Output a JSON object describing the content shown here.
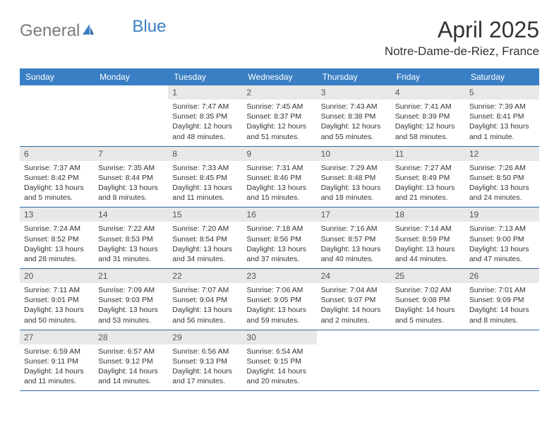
{
  "logo": {
    "text_part1": "General",
    "text_part2": "Blue",
    "color_gray": "#7a7a7a",
    "color_blue": "#3a7fc4"
  },
  "title": "April 2025",
  "location": "Notre-Dame-de-Riez, France",
  "header_bg": "#3a7fc4",
  "header_fg": "#ffffff",
  "daynum_bg": "#e8e8e8",
  "row_border": "#2e68a3",
  "weekdays": [
    "Sunday",
    "Monday",
    "Tuesday",
    "Wednesday",
    "Thursday",
    "Friday",
    "Saturday"
  ],
  "weeks": [
    {
      "days": [
        null,
        null,
        {
          "n": "1",
          "sr": "Sunrise: 7:47 AM",
          "ss": "Sunset: 8:35 PM",
          "dl1": "Daylight: 12 hours",
          "dl2": "and 48 minutes."
        },
        {
          "n": "2",
          "sr": "Sunrise: 7:45 AM",
          "ss": "Sunset: 8:37 PM",
          "dl1": "Daylight: 12 hours",
          "dl2": "and 51 minutes."
        },
        {
          "n": "3",
          "sr": "Sunrise: 7:43 AM",
          "ss": "Sunset: 8:38 PM",
          "dl1": "Daylight: 12 hours",
          "dl2": "and 55 minutes."
        },
        {
          "n": "4",
          "sr": "Sunrise: 7:41 AM",
          "ss": "Sunset: 8:39 PM",
          "dl1": "Daylight: 12 hours",
          "dl2": "and 58 minutes."
        },
        {
          "n": "5",
          "sr": "Sunrise: 7:39 AM",
          "ss": "Sunset: 8:41 PM",
          "dl1": "Daylight: 13 hours",
          "dl2": "and 1 minute."
        }
      ]
    },
    {
      "days": [
        {
          "n": "6",
          "sr": "Sunrise: 7:37 AM",
          "ss": "Sunset: 8:42 PM",
          "dl1": "Daylight: 13 hours",
          "dl2": "and 5 minutes."
        },
        {
          "n": "7",
          "sr": "Sunrise: 7:35 AM",
          "ss": "Sunset: 8:44 PM",
          "dl1": "Daylight: 13 hours",
          "dl2": "and 8 minutes."
        },
        {
          "n": "8",
          "sr": "Sunrise: 7:33 AM",
          "ss": "Sunset: 8:45 PM",
          "dl1": "Daylight: 13 hours",
          "dl2": "and 11 minutes."
        },
        {
          "n": "9",
          "sr": "Sunrise: 7:31 AM",
          "ss": "Sunset: 8:46 PM",
          "dl1": "Daylight: 13 hours",
          "dl2": "and 15 minutes."
        },
        {
          "n": "10",
          "sr": "Sunrise: 7:29 AM",
          "ss": "Sunset: 8:48 PM",
          "dl1": "Daylight: 13 hours",
          "dl2": "and 18 minutes."
        },
        {
          "n": "11",
          "sr": "Sunrise: 7:27 AM",
          "ss": "Sunset: 8:49 PM",
          "dl1": "Daylight: 13 hours",
          "dl2": "and 21 minutes."
        },
        {
          "n": "12",
          "sr": "Sunrise: 7:26 AM",
          "ss": "Sunset: 8:50 PM",
          "dl1": "Daylight: 13 hours",
          "dl2": "and 24 minutes."
        }
      ]
    },
    {
      "days": [
        {
          "n": "13",
          "sr": "Sunrise: 7:24 AM",
          "ss": "Sunset: 8:52 PM",
          "dl1": "Daylight: 13 hours",
          "dl2": "and 28 minutes."
        },
        {
          "n": "14",
          "sr": "Sunrise: 7:22 AM",
          "ss": "Sunset: 8:53 PM",
          "dl1": "Daylight: 13 hours",
          "dl2": "and 31 minutes."
        },
        {
          "n": "15",
          "sr": "Sunrise: 7:20 AM",
          "ss": "Sunset: 8:54 PM",
          "dl1": "Daylight: 13 hours",
          "dl2": "and 34 minutes."
        },
        {
          "n": "16",
          "sr": "Sunrise: 7:18 AM",
          "ss": "Sunset: 8:56 PM",
          "dl1": "Daylight: 13 hours",
          "dl2": "and 37 minutes."
        },
        {
          "n": "17",
          "sr": "Sunrise: 7:16 AM",
          "ss": "Sunset: 8:57 PM",
          "dl1": "Daylight: 13 hours",
          "dl2": "and 40 minutes."
        },
        {
          "n": "18",
          "sr": "Sunrise: 7:14 AM",
          "ss": "Sunset: 8:59 PM",
          "dl1": "Daylight: 13 hours",
          "dl2": "and 44 minutes."
        },
        {
          "n": "19",
          "sr": "Sunrise: 7:13 AM",
          "ss": "Sunset: 9:00 PM",
          "dl1": "Daylight: 13 hours",
          "dl2": "and 47 minutes."
        }
      ]
    },
    {
      "days": [
        {
          "n": "20",
          "sr": "Sunrise: 7:11 AM",
          "ss": "Sunset: 9:01 PM",
          "dl1": "Daylight: 13 hours",
          "dl2": "and 50 minutes."
        },
        {
          "n": "21",
          "sr": "Sunrise: 7:09 AM",
          "ss": "Sunset: 9:03 PM",
          "dl1": "Daylight: 13 hours",
          "dl2": "and 53 minutes."
        },
        {
          "n": "22",
          "sr": "Sunrise: 7:07 AM",
          "ss": "Sunset: 9:04 PM",
          "dl1": "Daylight: 13 hours",
          "dl2": "and 56 minutes."
        },
        {
          "n": "23",
          "sr": "Sunrise: 7:06 AM",
          "ss": "Sunset: 9:05 PM",
          "dl1": "Daylight: 13 hours",
          "dl2": "and 59 minutes."
        },
        {
          "n": "24",
          "sr": "Sunrise: 7:04 AM",
          "ss": "Sunset: 9:07 PM",
          "dl1": "Daylight: 14 hours",
          "dl2": "and 2 minutes."
        },
        {
          "n": "25",
          "sr": "Sunrise: 7:02 AM",
          "ss": "Sunset: 9:08 PM",
          "dl1": "Daylight: 14 hours",
          "dl2": "and 5 minutes."
        },
        {
          "n": "26",
          "sr": "Sunrise: 7:01 AM",
          "ss": "Sunset: 9:09 PM",
          "dl1": "Daylight: 14 hours",
          "dl2": "and 8 minutes."
        }
      ]
    },
    {
      "days": [
        {
          "n": "27",
          "sr": "Sunrise: 6:59 AM",
          "ss": "Sunset: 9:11 PM",
          "dl1": "Daylight: 14 hours",
          "dl2": "and 11 minutes."
        },
        {
          "n": "28",
          "sr": "Sunrise: 6:57 AM",
          "ss": "Sunset: 9:12 PM",
          "dl1": "Daylight: 14 hours",
          "dl2": "and 14 minutes."
        },
        {
          "n": "29",
          "sr": "Sunrise: 6:56 AM",
          "ss": "Sunset: 9:13 PM",
          "dl1": "Daylight: 14 hours",
          "dl2": "and 17 minutes."
        },
        {
          "n": "30",
          "sr": "Sunrise: 6:54 AM",
          "ss": "Sunset: 9:15 PM",
          "dl1": "Daylight: 14 hours",
          "dl2": "and 20 minutes."
        },
        null,
        null,
        null
      ]
    }
  ]
}
